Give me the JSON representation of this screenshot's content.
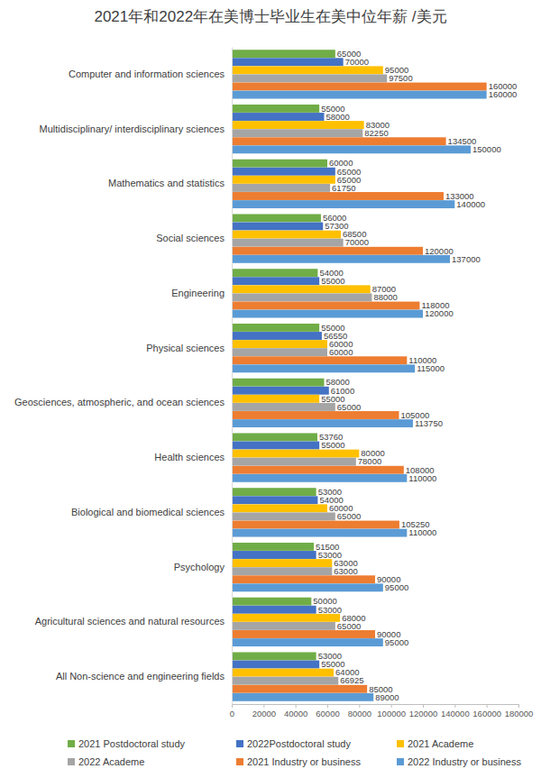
{
  "chart_data": {
    "type": "bar",
    "orientation": "horizontal",
    "title": "2021年和2022年在美博士毕业生在美中位年薪 /美元",
    "categories": [
      "Computer and information sciences",
      "Multidisciplinary/ interdisciplinary sciences",
      "Mathematics and statistics",
      "Social sciences",
      "Engineering",
      "Physical sciences",
      "Geosciences, atmospheric, and ocean sciences",
      "Health sciences",
      "Biological and biomedical sciences",
      "Psychology",
      "Agricultural sciences and natural resources",
      "All Non-science and engineering fields"
    ],
    "series": [
      {
        "name": "2021 Postdoctoral study",
        "color": "#70ad47",
        "values": [
          65000,
          55000,
          60000,
          56000,
          54000,
          55000,
          58000,
          53760,
          53000,
          51500,
          50000,
          53000
        ]
      },
      {
        "name": "2022Postdoctoral study",
        "color": "#4472c4",
        "values": [
          70000,
          58000,
          65000,
          57300,
          55000,
          56550,
          61000,
          55000,
          54000,
          53000,
          53000,
          55000
        ]
      },
      {
        "name": "2021 Academe",
        "color": "#ffc000",
        "values": [
          95000,
          83000,
          65000,
          68500,
          87000,
          60000,
          55000,
          80000,
          60000,
          63000,
          68000,
          64000
        ]
      },
      {
        "name": "2022 Academe",
        "color": "#a5a5a5",
        "values": [
          97500,
          82250,
          61750,
          70000,
          88000,
          60000,
          65000,
          78000,
          65000,
          63000,
          65000,
          66925
        ]
      },
      {
        "name": "2021 Industry or business",
        "color": "#ed7d31",
        "values": [
          160000,
          134500,
          133000,
          120000,
          118000,
          110000,
          105000,
          108000,
          105250,
          90000,
          90000,
          85000
        ]
      },
      {
        "name": "2022 Industry or business",
        "color": "#5b9bd5",
        "values": [
          160000,
          150000,
          140000,
          137000,
          120000,
          115000,
          113750,
          110000,
          110000,
          95000,
          95000,
          89000
        ]
      }
    ],
    "xlim": [
      0,
      180000
    ],
    "xticks": [
      0,
      20000,
      40000,
      60000,
      80000,
      100000,
      120000,
      140000,
      160000,
      180000
    ],
    "grid": false,
    "data_labels": true,
    "legend": "bottom"
  }
}
